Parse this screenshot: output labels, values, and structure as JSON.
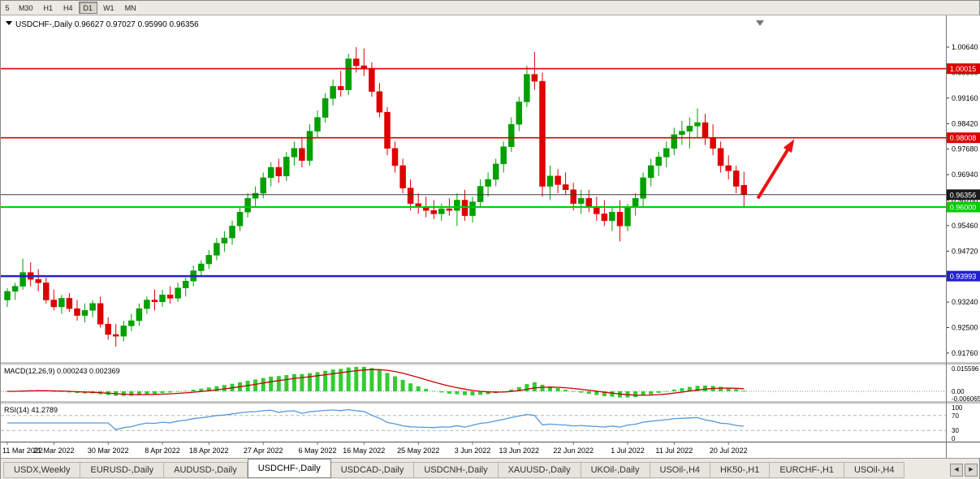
{
  "toolbar": {
    "timeframes": [
      "5",
      "M30",
      "H1",
      "H4",
      "D1",
      "W1",
      "MN"
    ],
    "active_timeframe": "D1"
  },
  "chart": {
    "title_symbol": "USDCHF-,Daily",
    "title_ohlc": "0.96627 0.97027 0.95990 0.96356"
  },
  "chart_data": {
    "type": "candlestick",
    "symbol": "USDCHF",
    "period": "Daily",
    "up_color": "#00a000",
    "down_color": "#dd0000",
    "candles": [
      [
        0.933,
        0.9365,
        0.931,
        0.9355
      ],
      [
        0.9355,
        0.938,
        0.933,
        0.937
      ],
      [
        0.937,
        0.945,
        0.936,
        0.941
      ],
      [
        0.941,
        0.944,
        0.937,
        0.939
      ],
      [
        0.939,
        0.942,
        0.9355,
        0.938
      ],
      [
        0.938,
        0.9395,
        0.932,
        0.933
      ],
      [
        0.933,
        0.936,
        0.93,
        0.931
      ],
      [
        0.931,
        0.9345,
        0.929,
        0.9335
      ],
      [
        0.9335,
        0.935,
        0.9295,
        0.9305
      ],
      [
        0.9305,
        0.933,
        0.927,
        0.9285
      ],
      [
        0.9285,
        0.932,
        0.9265,
        0.93
      ],
      [
        0.93,
        0.933,
        0.928,
        0.932
      ],
      [
        0.932,
        0.934,
        0.925,
        0.926
      ],
      [
        0.926,
        0.928,
        0.9215,
        0.923
      ],
      [
        0.923,
        0.926,
        0.9195,
        0.9225
      ],
      [
        0.9225,
        0.927,
        0.921,
        0.9255
      ],
      [
        0.9255,
        0.929,
        0.924,
        0.927
      ],
      [
        0.927,
        0.932,
        0.9255,
        0.9305
      ],
      [
        0.9305,
        0.934,
        0.929,
        0.933
      ],
      [
        0.933,
        0.936,
        0.93,
        0.9325
      ],
      [
        0.9325,
        0.936,
        0.931,
        0.9345
      ],
      [
        0.9345,
        0.937,
        0.932,
        0.9335
      ],
      [
        0.9335,
        0.938,
        0.9325,
        0.9365
      ],
      [
        0.9365,
        0.9395,
        0.934,
        0.9385
      ],
      [
        0.9385,
        0.943,
        0.937,
        0.9415
      ],
      [
        0.9415,
        0.9445,
        0.94,
        0.9435
      ],
      [
        0.9435,
        0.9475,
        0.942,
        0.946
      ],
      [
        0.946,
        0.951,
        0.9445,
        0.9495
      ],
      [
        0.9495,
        0.953,
        0.947,
        0.951
      ],
      [
        0.951,
        0.956,
        0.949,
        0.9545
      ],
      [
        0.9545,
        0.96,
        0.953,
        0.9585
      ],
      [
        0.9585,
        0.964,
        0.957,
        0.9625
      ],
      [
        0.9625,
        0.966,
        0.96,
        0.964
      ],
      [
        0.964,
        0.97,
        0.9625,
        0.9685
      ],
      [
        0.9685,
        0.973,
        0.966,
        0.9715
      ],
      [
        0.9715,
        0.974,
        0.967,
        0.969
      ],
      [
        0.969,
        0.976,
        0.9675,
        0.9745
      ],
      [
        0.9745,
        0.979,
        0.972,
        0.977
      ],
      [
        0.977,
        0.98,
        0.9715,
        0.9735
      ],
      [
        0.9735,
        0.984,
        0.972,
        0.982
      ],
      [
        0.982,
        0.988,
        0.98,
        0.986
      ],
      [
        0.986,
        0.993,
        0.9845,
        0.9915
      ],
      [
        0.9915,
        0.997,
        0.9895,
        0.995
      ],
      [
        0.995,
        0.9995,
        0.992,
        0.994
      ],
      [
        0.994,
        1.0045,
        0.9925,
        1.003
      ],
      [
        1.003,
        1.0064,
        0.999,
        1.001
      ],
      [
        1.001,
        1.006,
        0.998,
        1.0
      ],
      [
        1.0,
        1.002,
        0.992,
        0.9935
      ],
      [
        0.9935,
        0.996,
        0.986,
        0.9875
      ],
      [
        0.9875,
        0.989,
        0.975,
        0.977
      ],
      [
        0.977,
        0.979,
        0.97,
        0.972
      ],
      [
        0.972,
        0.974,
        0.964,
        0.9655
      ],
      [
        0.9655,
        0.968,
        0.959,
        0.961
      ],
      [
        0.961,
        0.964,
        0.958,
        0.96
      ],
      [
        0.96,
        0.963,
        0.957,
        0.959
      ],
      [
        0.959,
        0.962,
        0.9565,
        0.958
      ],
      [
        0.958,
        0.961,
        0.956,
        0.9595
      ],
      [
        0.9595,
        0.9625,
        0.9575,
        0.959
      ],
      [
        0.959,
        0.964,
        0.9545,
        0.962
      ],
      [
        0.962,
        0.965,
        0.956,
        0.9575
      ],
      [
        0.9575,
        0.963,
        0.9555,
        0.9615
      ],
      [
        0.9615,
        0.968,
        0.96,
        0.966
      ],
      [
        0.966,
        0.97,
        0.963,
        0.968
      ],
      [
        0.968,
        0.974,
        0.966,
        0.9725
      ],
      [
        0.9725,
        0.979,
        0.97,
        0.9775
      ],
      [
        0.9775,
        0.986,
        0.976,
        0.984
      ],
      [
        0.984,
        0.992,
        0.982,
        0.9905
      ],
      [
        0.9905,
        1.001,
        0.989,
        0.9985
      ],
      [
        0.9985,
        1.005,
        0.994,
        0.9965
      ],
      [
        0.9965,
        0.999,
        0.963,
        0.966
      ],
      [
        0.966,
        0.972,
        0.962,
        0.969
      ],
      [
        0.969,
        0.971,
        0.964,
        0.9665
      ],
      [
        0.9665,
        0.97,
        0.9635,
        0.965
      ],
      [
        0.965,
        0.967,
        0.959,
        0.961
      ],
      [
        0.961,
        0.965,
        0.958,
        0.9625
      ],
      [
        0.9625,
        0.965,
        0.9585,
        0.96
      ],
      [
        0.96,
        0.963,
        0.956,
        0.958
      ],
      [
        0.958,
        0.962,
        0.9545,
        0.956
      ],
      [
        0.956,
        0.96,
        0.953,
        0.9585
      ],
      [
        0.9585,
        0.962,
        0.95,
        0.9545
      ],
      [
        0.9545,
        0.961,
        0.953,
        0.96
      ],
      [
        0.96,
        0.964,
        0.9575,
        0.9625
      ],
      [
        0.9625,
        0.97,
        0.96,
        0.9685
      ],
      [
        0.9685,
        0.974,
        0.966,
        0.972
      ],
      [
        0.972,
        0.976,
        0.969,
        0.9745
      ],
      [
        0.9745,
        0.979,
        0.9715,
        0.977
      ],
      [
        0.977,
        0.983,
        0.975,
        0.981
      ],
      [
        0.981,
        0.985,
        0.978,
        0.982
      ],
      [
        0.982,
        0.986,
        0.977,
        0.9835
      ],
      [
        0.9835,
        0.9886,
        0.98,
        0.9845
      ],
      [
        0.9845,
        0.987,
        0.978,
        0.98
      ],
      [
        0.98,
        0.984,
        0.975,
        0.977
      ],
      [
        0.977,
        0.979,
        0.97,
        0.972
      ],
      [
        0.972,
        0.975,
        0.968,
        0.9705
      ],
      [
        0.9705,
        0.972,
        0.964,
        0.966
      ],
      [
        0.96627,
        0.97027,
        0.9599,
        0.96356
      ]
    ],
    "y_axis_ticks": [
      "1.00640",
      "0.99900",
      "0.99160",
      "0.98420",
      "0.97680",
      "0.96940",
      "0.96200",
      "0.95460",
      "0.94720",
      "0.93980",
      "0.93240",
      "0.92500",
      "0.91760"
    ],
    "x_axis_ticks": [
      {
        "i": 0,
        "label": "11 Mar 2022"
      },
      {
        "i": 6,
        "label": "21 Mar 2022"
      },
      {
        "i": 13,
        "label": "30 Mar 2022"
      },
      {
        "i": 20,
        "label": "8 Apr 2022"
      },
      {
        "i": 26,
        "label": "18 Apr 2022"
      },
      {
        "i": 33,
        "label": "27 Apr 2022"
      },
      {
        "i": 40,
        "label": "6 May 2022"
      },
      {
        "i": 46,
        "label": "16 May 2022"
      },
      {
        "i": 53,
        "label": "25 May 2022"
      },
      {
        "i": 60,
        "label": "3 Jun 2022"
      },
      {
        "i": 66,
        "label": "13 Jun 2022"
      },
      {
        "i": 73,
        "label": "22 Jun 2022"
      },
      {
        "i": 80,
        "label": "1 Jul 2022"
      },
      {
        "i": 86,
        "label": "11 Jul 2022"
      },
      {
        "i": 93,
        "label": "20 Jul 2022"
      }
    ],
    "price_lines": [
      {
        "price": 1.00015,
        "label": "1.00015",
        "color": "#dd0000",
        "thickness": 1.6
      },
      {
        "price": 0.98008,
        "label": "0.98008",
        "color": "#dd0000",
        "thickness": 1.6
      },
      {
        "price": 0.96356,
        "label": "0.96356",
        "color": "#3a3a3a",
        "thickness": 1,
        "label_bg": "#1a1a1a"
      },
      {
        "price": 0.96,
        "label": "0.96000",
        "color": "#00cc00",
        "thickness": 2
      },
      {
        "price": 0.93993,
        "label": "0.93993",
        "color": "#2222cc",
        "thickness": 2.5
      }
    ],
    "trend_arrow": {
      "from": {
        "i": 96.8,
        "price": 0.9625
      },
      "to": {
        "i": 101.5,
        "price": 0.9797
      },
      "color": "#ee1111"
    },
    "indicators": [
      {
        "name": "MACD",
        "label": "MACD(12,26,9)",
        "values_text": "0.000243 0.002369",
        "params": {
          "fast": 12,
          "slow": 26,
          "signal": 9
        },
        "histogram_color": "#32cd32",
        "signal_color": "#cc0000",
        "axis_labels": [
          {
            "value": 0.015596,
            "label": "0.015596"
          },
          {
            "value": 0,
            "label": "0.00"
          },
          {
            "value": -0.006065,
            "label": "-0.006065"
          }
        ]
      },
      {
        "name": "RSI",
        "label": "RSI(14)",
        "values_text": "41.2789",
        "params": {
          "period": 14
        },
        "line_color": "#5599dd",
        "levels": [
          70,
          30
        ],
        "axis_labels": [
          {
            "value": 100,
            "label": "100"
          },
          {
            "value": 70,
            "label": "70"
          },
          {
            "value": 30,
            "label": "30"
          },
          {
            "value": 0,
            "label": "0"
          }
        ]
      }
    ]
  },
  "tabs": {
    "items": [
      "USDX,Weekly",
      "EURUSD-,Daily",
      "AUDUSD-,Daily",
      "USDCHF-,Daily",
      "USDCAD-,Daily",
      "USDCNH-,Daily",
      "XAUUSD-,Daily",
      "UKOil-,Daily",
      "USOil-,H4",
      "HK50-,H1",
      "EURCHF-,H1",
      "USOil-,H4"
    ],
    "active_index": 3,
    "scroll_left_icon": "◀",
    "scroll_right_icon": "▶"
  }
}
